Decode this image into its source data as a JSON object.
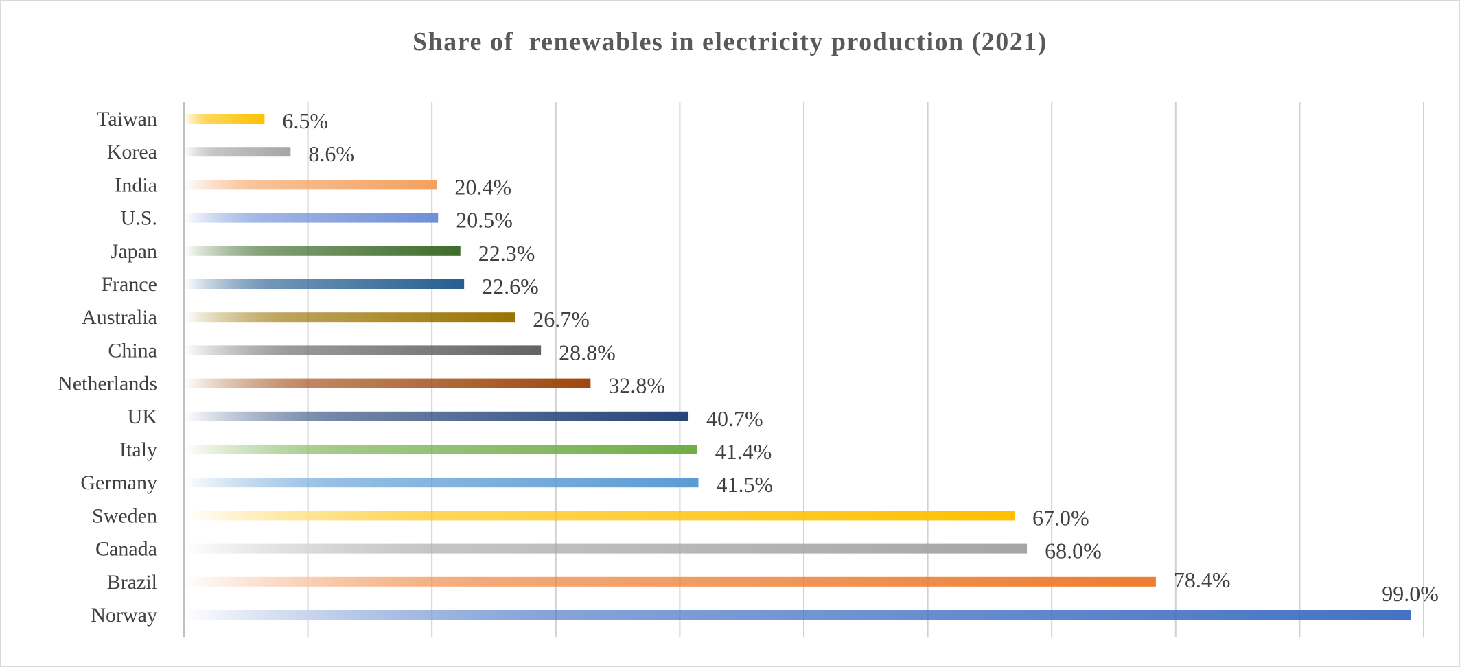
{
  "chart_data": {
    "type": "bar",
    "orientation": "horizontal",
    "title": "Share of  renewables in electricity production (2021)",
    "xlabel": "",
    "ylabel": "",
    "xlim": [
      0,
      100
    ],
    "grid": true,
    "grid_step": 10,
    "value_suffix": "%",
    "categories": [
      "Taiwan",
      "Korea",
      "India",
      "U.S.",
      "Japan",
      "France",
      "Australia",
      "China",
      "Netherlands",
      "UK",
      "Italy",
      "Germany",
      "Sweden",
      "Canada",
      "Brazil",
      "Norway"
    ],
    "values": [
      6.5,
      8.6,
      20.4,
      20.5,
      22.3,
      22.6,
      26.7,
      28.8,
      32.8,
      40.7,
      41.4,
      41.5,
      67.0,
      68.0,
      78.4,
      99.0
    ],
    "data_labels": [
      "6.5%",
      "8.6%",
      "20.4%",
      "20.5%",
      "22.3%",
      "22.6%",
      "26.7%",
      "28.8%",
      "32.8%",
      "40.7%",
      "41.4%",
      "41.5%",
      "67.0%",
      "68.0%",
      "78.4%",
      "99.0%"
    ],
    "colors": [
      "#FFC000",
      "#A5A5A5",
      "#F4A05E",
      "#6F8FD6",
      "#3E6B2A",
      "#255E91",
      "#997300",
      "#636363",
      "#9E480E",
      "#264478",
      "#70AD47",
      "#5B9BD5",
      "#FFC000",
      "#A5A5A5",
      "#ED7D31",
      "#4472C4"
    ],
    "bar_style": "gradient fading to white on the left",
    "legend": "none"
  }
}
